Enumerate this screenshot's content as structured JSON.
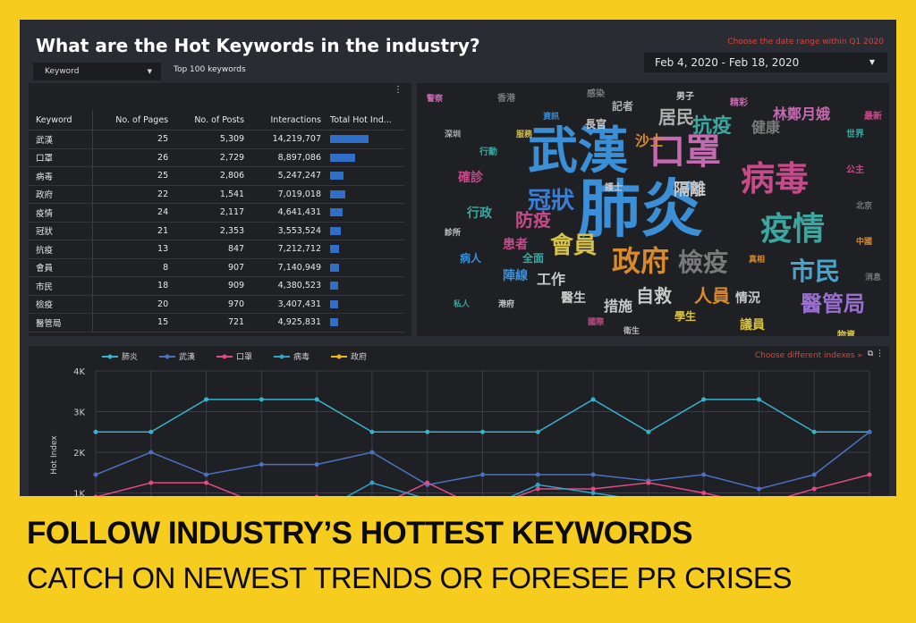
{
  "title": "What are the Hot Keywords in the industry?",
  "date_hint": "Choose the date range within Q1 2020",
  "date_range": "Feb 4, 2020 - Feb 18, 2020",
  "keyword_select": "Keyword",
  "top_label": "Top 100 keywords",
  "table": {
    "headers": [
      "Keyword",
      "No. of Pages",
      "No. of Posts",
      "Interactions",
      "Total Hot Ind..."
    ],
    "rows": [
      {
        "k": "武漢",
        "pages": "25",
        "posts": "5,309",
        "inter": "14,219,707",
        "hot": 0.5
      },
      {
        "k": "口罩",
        "pages": "26",
        "posts": "2,729",
        "inter": "8,897,086",
        "hot": 0.32
      },
      {
        "k": "病毒",
        "pages": "25",
        "posts": "2,806",
        "inter": "5,247,247",
        "hot": 0.18
      },
      {
        "k": "政府",
        "pages": "22",
        "posts": "1,541",
        "inter": "7,019,018",
        "hot": 0.2
      },
      {
        "k": "疫情",
        "pages": "24",
        "posts": "2,117",
        "inter": "4,641,431",
        "hot": 0.16
      },
      {
        "k": "冠狀",
        "pages": "21",
        "posts": "2,353",
        "inter": "3,553,524",
        "hot": 0.14
      },
      {
        "k": "抗疫",
        "pages": "13",
        "posts": "847",
        "inter": "7,212,712",
        "hot": 0.12
      },
      {
        "k": "會員",
        "pages": "8",
        "posts": "907",
        "inter": "7,140,949",
        "hot": 0.12
      },
      {
        "k": "市民",
        "pages": "18",
        "posts": "909",
        "inter": "4,380,523",
        "hot": 0.11
      },
      {
        "k": "檢疫",
        "pages": "20",
        "posts": "970",
        "inter": "3,407,431",
        "hot": 0.1
      },
      {
        "k": "醫管局",
        "pages": "15",
        "posts": "721",
        "inter": "4,925,831",
        "hot": 0.1
      }
    ]
  },
  "wordcloud": [
    {
      "t": "肺炎",
      "c": "#3a8fd6",
      "s": 70
    },
    {
      "t": "武漢",
      "c": "#3a8fd6",
      "s": 56
    },
    {
      "t": "口罩",
      "c": "#c46ab0",
      "s": 40
    },
    {
      "t": "病毒",
      "c": "#c84a8a",
      "s": 38
    },
    {
      "t": "疫情",
      "c": "#3aa7a0",
      "s": 36
    },
    {
      "t": "政府",
      "c": "#d98a2a",
      "s": 32
    },
    {
      "t": "檢疫",
      "c": "#7a7a7a",
      "s": 28
    },
    {
      "t": "市民",
      "c": "#4aa4c9",
      "s": 28
    },
    {
      "t": "冠狀",
      "c": "#3a7fd6",
      "s": 26
    },
    {
      "t": "會員",
      "c": "#d6c24a",
      "s": 26
    },
    {
      "t": "醫管局",
      "c": "#9a6fd0",
      "s": 24
    },
    {
      "t": "自救",
      "c": "#c9c9c9",
      "s": 20
    },
    {
      "t": "人員",
      "c": "#d98a2a",
      "s": 20
    },
    {
      "t": "抗疫",
      "c": "#3aa7a0",
      "s": 22
    },
    {
      "t": "居民",
      "c": "#b0b0b0",
      "s": 20
    },
    {
      "t": "防疫",
      "c": "#c84a8a",
      "s": 20
    },
    {
      "t": "林鄭月娥",
      "c": "#c46ab0",
      "s": 16
    },
    {
      "t": "健康",
      "c": "#7a7a7a",
      "s": 16
    },
    {
      "t": "隔離",
      "c": "#c9c9c9",
      "s": 18
    },
    {
      "t": "措施",
      "c": "#c9c9c9",
      "s": 16
    },
    {
      "t": "工作",
      "c": "#c9c9c9",
      "s": 16
    },
    {
      "t": "陣線",
      "c": "#3a8fd6",
      "s": 14
    },
    {
      "t": "醫生",
      "c": "#c9c9c9",
      "s": 14
    },
    {
      "t": "情況",
      "c": "#c9c9c9",
      "s": 14
    },
    {
      "t": "議員",
      "c": "#d6c24a",
      "s": 14
    },
    {
      "t": "患者",
      "c": "#c84a8a",
      "s": 14
    },
    {
      "t": "行政",
      "c": "#3aa7a0",
      "s": 14
    },
    {
      "t": "學生",
      "c": "#d6c24a",
      "s": 12
    },
    {
      "t": "記者",
      "c": "#b0b0b0",
      "s": 12
    },
    {
      "t": "沙士",
      "c": "#d98a2a",
      "s": 16
    },
    {
      "t": "確診",
      "c": "#c84a8a",
      "s": 14
    },
    {
      "t": "全面",
      "c": "#3aa7a0",
      "s": 12
    },
    {
      "t": "物資",
      "c": "#d6c24a",
      "s": 10
    },
    {
      "t": "男子",
      "c": "#c9c9c9",
      "s": 10
    },
    {
      "t": "感染",
      "c": "#7a7a7a",
      "s": 10
    },
    {
      "t": "精彩",
      "c": "#c46ab0",
      "s": 10
    },
    {
      "t": "公主",
      "c": "#c84a8a",
      "s": 10
    },
    {
      "t": "病人",
      "c": "#3a8fd6",
      "s": 12
    },
    {
      "t": "香港",
      "c": "#7a7a7a",
      "s": 10
    },
    {
      "t": "世界",
      "c": "#3aa7a0",
      "s": 10
    },
    {
      "t": "護士",
      "c": "#c9c9c9",
      "s": 10
    },
    {
      "t": "真相",
      "c": "#d98a2a",
      "s": 9
    },
    {
      "t": "北京",
      "c": "#7a7a7a",
      "s": 9
    },
    {
      "t": "國際",
      "c": "#c84a8a",
      "s": 9
    },
    {
      "t": "衛生",
      "c": "#b0b0b0",
      "s": 9
    },
    {
      "t": "港府",
      "c": "#c9c9c9",
      "s": 9
    },
    {
      "t": "資訊",
      "c": "#3a8fd6",
      "s": 9
    },
    {
      "t": "深圳",
      "c": "#b0b0b0",
      "s": 9
    },
    {
      "t": "私人",
      "c": "#3aa7a0",
      "s": 9
    },
    {
      "t": "服務",
      "c": "#d6c24a",
      "s": 9
    },
    {
      "t": "長官",
      "c": "#c9c9c9",
      "s": 12
    },
    {
      "t": "警察",
      "c": "#c46ab0",
      "s": 9
    },
    {
      "t": "中國",
      "c": "#d98a2a",
      "s": 9
    },
    {
      "t": "最新",
      "c": "#c84a8a",
      "s": 10
    },
    {
      "t": "消息",
      "c": "#7a7a7a",
      "s": 9
    },
    {
      "t": "行動",
      "c": "#3aa7a0",
      "s": 10
    },
    {
      "t": "診所",
      "c": "#c9c9c9",
      "s": 9
    }
  ],
  "line_chart": {
    "hint": "Choose different indexes »",
    "chart_data": {
      "type": "line",
      "ylabel": "Hot Index",
      "xlabel": "",
      "ylim": [
        0,
        4000
      ],
      "yticks": [
        "1K",
        "2K",
        "3K",
        "4K"
      ],
      "x": [
        1,
        2,
        3,
        4,
        5,
        6,
        7,
        8,
        9,
        10,
        11,
        12,
        13,
        14,
        15
      ],
      "series": [
        {
          "name": "肺炎",
          "color": "#35b4d0",
          "values": [
            2500,
            2500,
            3300,
            3300,
            3300,
            2500,
            2500,
            2500,
            2500,
            3300,
            2500,
            3300,
            3300,
            2500,
            2500
          ]
        },
        {
          "name": "武漢",
          "color": "#4a72c2",
          "values": [
            1450,
            2000,
            1450,
            1700,
            1700,
            2000,
            1200,
            1450,
            1450,
            1450,
            1300,
            1450,
            1100,
            1450,
            2500
          ]
        },
        {
          "name": "口罩",
          "color": "#e24a86",
          "values": [
            900,
            1250,
            1250,
            700,
            900,
            600,
            1250,
            600,
            1100,
            1100,
            1250,
            1000,
            700,
            1100,
            1450
          ]
        },
        {
          "name": "病毒",
          "color": "#2fa3c9",
          "values": [
            300,
            500,
            700,
            700,
            500,
            1250,
            850,
            600,
            1200,
            1000,
            800,
            500,
            400,
            600,
            700
          ]
        },
        {
          "name": "政府",
          "color": "#f2b418",
          "values": [
            400,
            600,
            400,
            300,
            400,
            200,
            400,
            300,
            200,
            300,
            400,
            300,
            200,
            300,
            300
          ]
        }
      ]
    }
  },
  "banner": {
    "line1": "FOLLOW INDUSTRY’S HOTTEST KEYWORDS",
    "line2": "CATCH ON NEWEST TRENDS OR FORESEE PR CRISES"
  }
}
